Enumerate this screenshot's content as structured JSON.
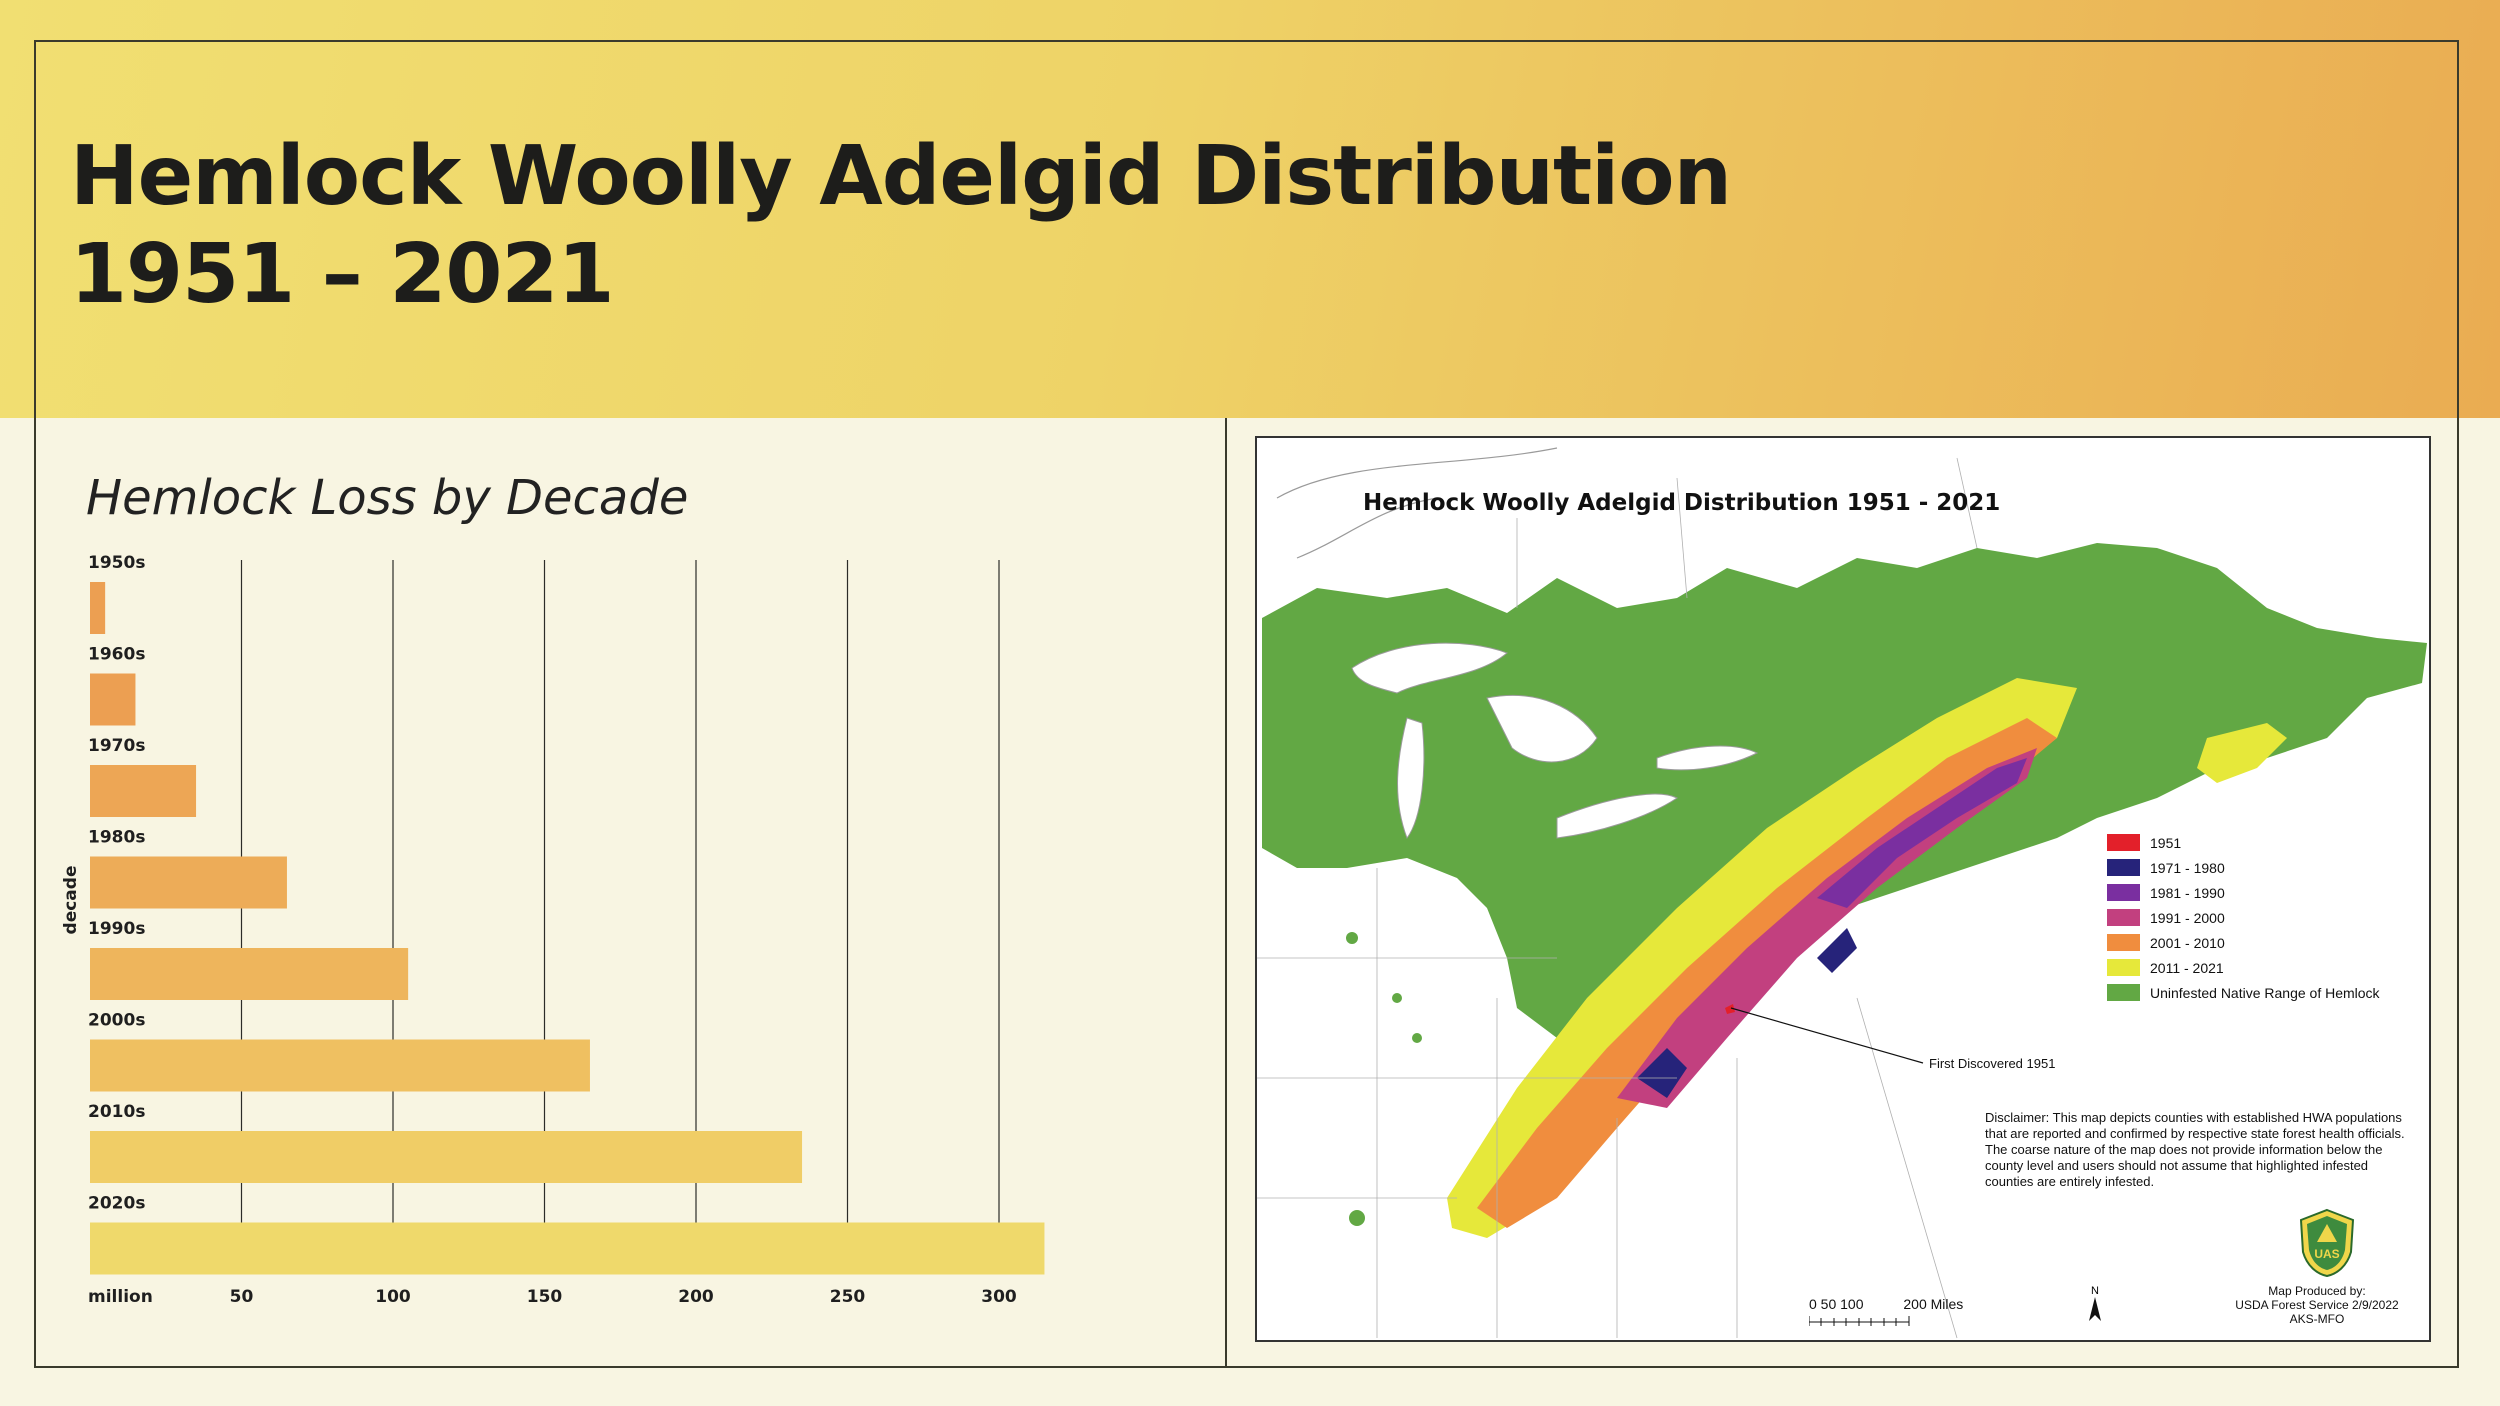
{
  "header": {
    "title_line1": "Hemlock Woolly Adelgid Distribution",
    "title_line2": "1951 – 2021"
  },
  "chart_data": {
    "type": "bar",
    "orientation": "horizontal",
    "title": "Hemlock Loss by Decade",
    "ylabel": "decade",
    "xlabel": "million",
    "categories": [
      "1950s",
      "1960s",
      "1970s",
      "1980s",
      "1990s",
      "2000s",
      "2010s",
      "2020s"
    ],
    "values": [
      5,
      15,
      35,
      65,
      105,
      165,
      235,
      315
    ],
    "x_ticks": [
      50,
      100,
      150,
      200,
      250,
      300
    ],
    "xlim": [
      0,
      320
    ],
    "grid": "vertical",
    "bar_colors": [
      "#ec9f52",
      "#ec9f52",
      "#eda655",
      "#edac58",
      "#eeb55c",
      "#efc061",
      "#f0cd66",
      "#efd96b"
    ]
  },
  "map": {
    "title": "Hemlock Woolly Adelgid Distribution 1951 - 2021",
    "legend": [
      {
        "label": "1951",
        "color": "#e3202a"
      },
      {
        "label": "1971 - 1980",
        "color": "#26237a"
      },
      {
        "label": "1981 - 1990",
        "color": "#7a2fa0"
      },
      {
        "label": "1991 - 2000",
        "color": "#c2407f"
      },
      {
        "label": "2001 - 2010",
        "color": "#f08d3e"
      },
      {
        "label": "2011 - 2021",
        "color": "#e6e83a"
      },
      {
        "label": "Uninfested Native Range of Hemlock",
        "color": "#62a844"
      }
    ],
    "annotation": "First Discovered 1951",
    "disclaimer": "Disclaimer: This map depicts counties with established HWA populations that are reported and confirmed by respective state forest health officials.  The coarse nature of the map does not provide information below the county level and users should not assume that highlighted infested counties are entirely infested.",
    "scale": {
      "ticks": "0   50  100",
      "end": "200 Miles"
    },
    "north": "N",
    "produced": [
      "Map Produced by:",
      "USDA Forest Service 2/9/2022",
      "AKS-MFO"
    ],
    "badge_text": "UAS",
    "colors": {
      "land": "#ffffff",
      "water": "#ffffff",
      "borders": "#9a9a9a",
      "green": "#62a844"
    }
  }
}
